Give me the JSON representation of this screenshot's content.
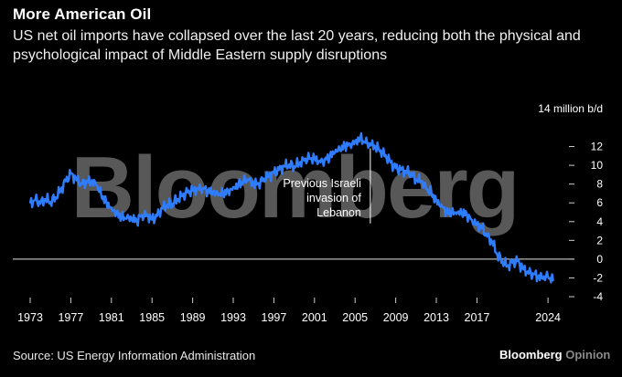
{
  "header": {
    "title": "More American Oil",
    "subtitle": "US net oil imports have collapsed over the last 20 years, reducing both the physical and psychological impact of Middle Eastern supply disruptions"
  },
  "watermark": {
    "text": "Bloomberg"
  },
  "footer": {
    "source": "Source: US Energy Information Administration",
    "brand": "Bloomberg",
    "brand_suffix": "Opinion"
  },
  "colors": {
    "background": "#000000",
    "line": "#2f7dff",
    "text": "#ffffff",
    "axis": "#cfcfcf"
  },
  "chart_data": {
    "type": "line",
    "title": "More American Oil",
    "ylabel": "million b/d",
    "y_unit_label": "14 million b/d",
    "ylim": [
      -4,
      14
    ],
    "xlim": [
      1973,
      2024.8
    ],
    "y_ticks": [
      -4,
      -2,
      0,
      2,
      4,
      6,
      8,
      10,
      12
    ],
    "x_ticks": [
      1973,
      1977,
      1981,
      1985,
      1989,
      1993,
      1997,
      2001,
      2005,
      2009,
      2013,
      2017,
      2024
    ],
    "zero_line": true,
    "annotation": {
      "year": 2006.5,
      "text_lines": [
        "Previous Israeli",
        "invasion of",
        "Lebanon"
      ]
    },
    "series": [
      {
        "name": "US net oil imports",
        "x": [
          1973,
          1973.5,
          1974,
          1974.5,
          1975,
          1975.5,
          1976,
          1976.5,
          1977,
          1977.5,
          1978,
          1978.5,
          1979,
          1979.5,
          1980,
          1980.5,
          1981,
          1981.5,
          1982,
          1982.5,
          1983,
          1983.5,
          1984,
          1984.5,
          1985,
          1985.5,
          1986,
          1986.5,
          1987,
          1987.5,
          1988,
          1988.5,
          1989,
          1989.5,
          1990,
          1990.5,
          1991,
          1991.5,
          1992,
          1992.5,
          1993,
          1993.5,
          1994,
          1994.5,
          1995,
          1995.5,
          1996,
          1996.5,
          1997,
          1997.5,
          1998,
          1998.5,
          1999,
          1999.5,
          2000,
          2000.5,
          2001,
          2001.5,
          2002,
          2002.5,
          2003,
          2003.5,
          2004,
          2004.5,
          2005,
          2005.5,
          2006,
          2006.5,
          2007,
          2007.5,
          2008,
          2008.5,
          2009,
          2009.5,
          2010,
          2010.5,
          2011,
          2011.5,
          2012,
          2012.5,
          2013,
          2013.5,
          2014,
          2014.5,
          2015,
          2015.5,
          2016,
          2016.5,
          2017,
          2017.5,
          2018,
          2018.5,
          2019,
          2019.5,
          2020,
          2020.5,
          2021,
          2021.5,
          2022,
          2022.5,
          2023,
          2023.5,
          2024,
          2024.5
        ],
        "values": [
          6.0,
          6.3,
          5.9,
          6.4,
          6.1,
          6.6,
          7.3,
          8.3,
          9.1,
          8.6,
          8.1,
          8.3,
          8.2,
          7.9,
          6.8,
          6.1,
          5.5,
          5.0,
          4.4,
          4.3,
          4.2,
          4.1,
          4.7,
          4.8,
          4.2,
          4.6,
          5.4,
          5.8,
          5.9,
          6.4,
          6.7,
          7.1,
          7.3,
          7.6,
          7.6,
          7.3,
          7.0,
          6.8,
          7.0,
          7.3,
          7.7,
          8.0,
          8.2,
          8.4,
          7.9,
          8.1,
          8.6,
          8.9,
          9.2,
          9.5,
          9.9,
          10.1,
          9.9,
          10.2,
          10.5,
          10.7,
          10.8,
          10.5,
          10.6,
          10.9,
          11.3,
          11.6,
          12.1,
          12.3,
          12.6,
          12.9,
          12.4,
          12.1,
          12.0,
          11.6,
          11.1,
          10.3,
          9.7,
          9.5,
          9.4,
          9.2,
          8.5,
          8.3,
          7.5,
          7.0,
          6.3,
          5.8,
          5.1,
          4.9,
          4.8,
          4.9,
          4.8,
          4.2,
          3.8,
          3.3,
          2.4,
          1.8,
          0.5,
          -0.2,
          -0.7,
          -0.4,
          -0.2,
          -1.0,
          -1.3,
          -1.5,
          -1.9,
          -2.1,
          -1.9,
          -2.3
        ]
      }
    ]
  }
}
